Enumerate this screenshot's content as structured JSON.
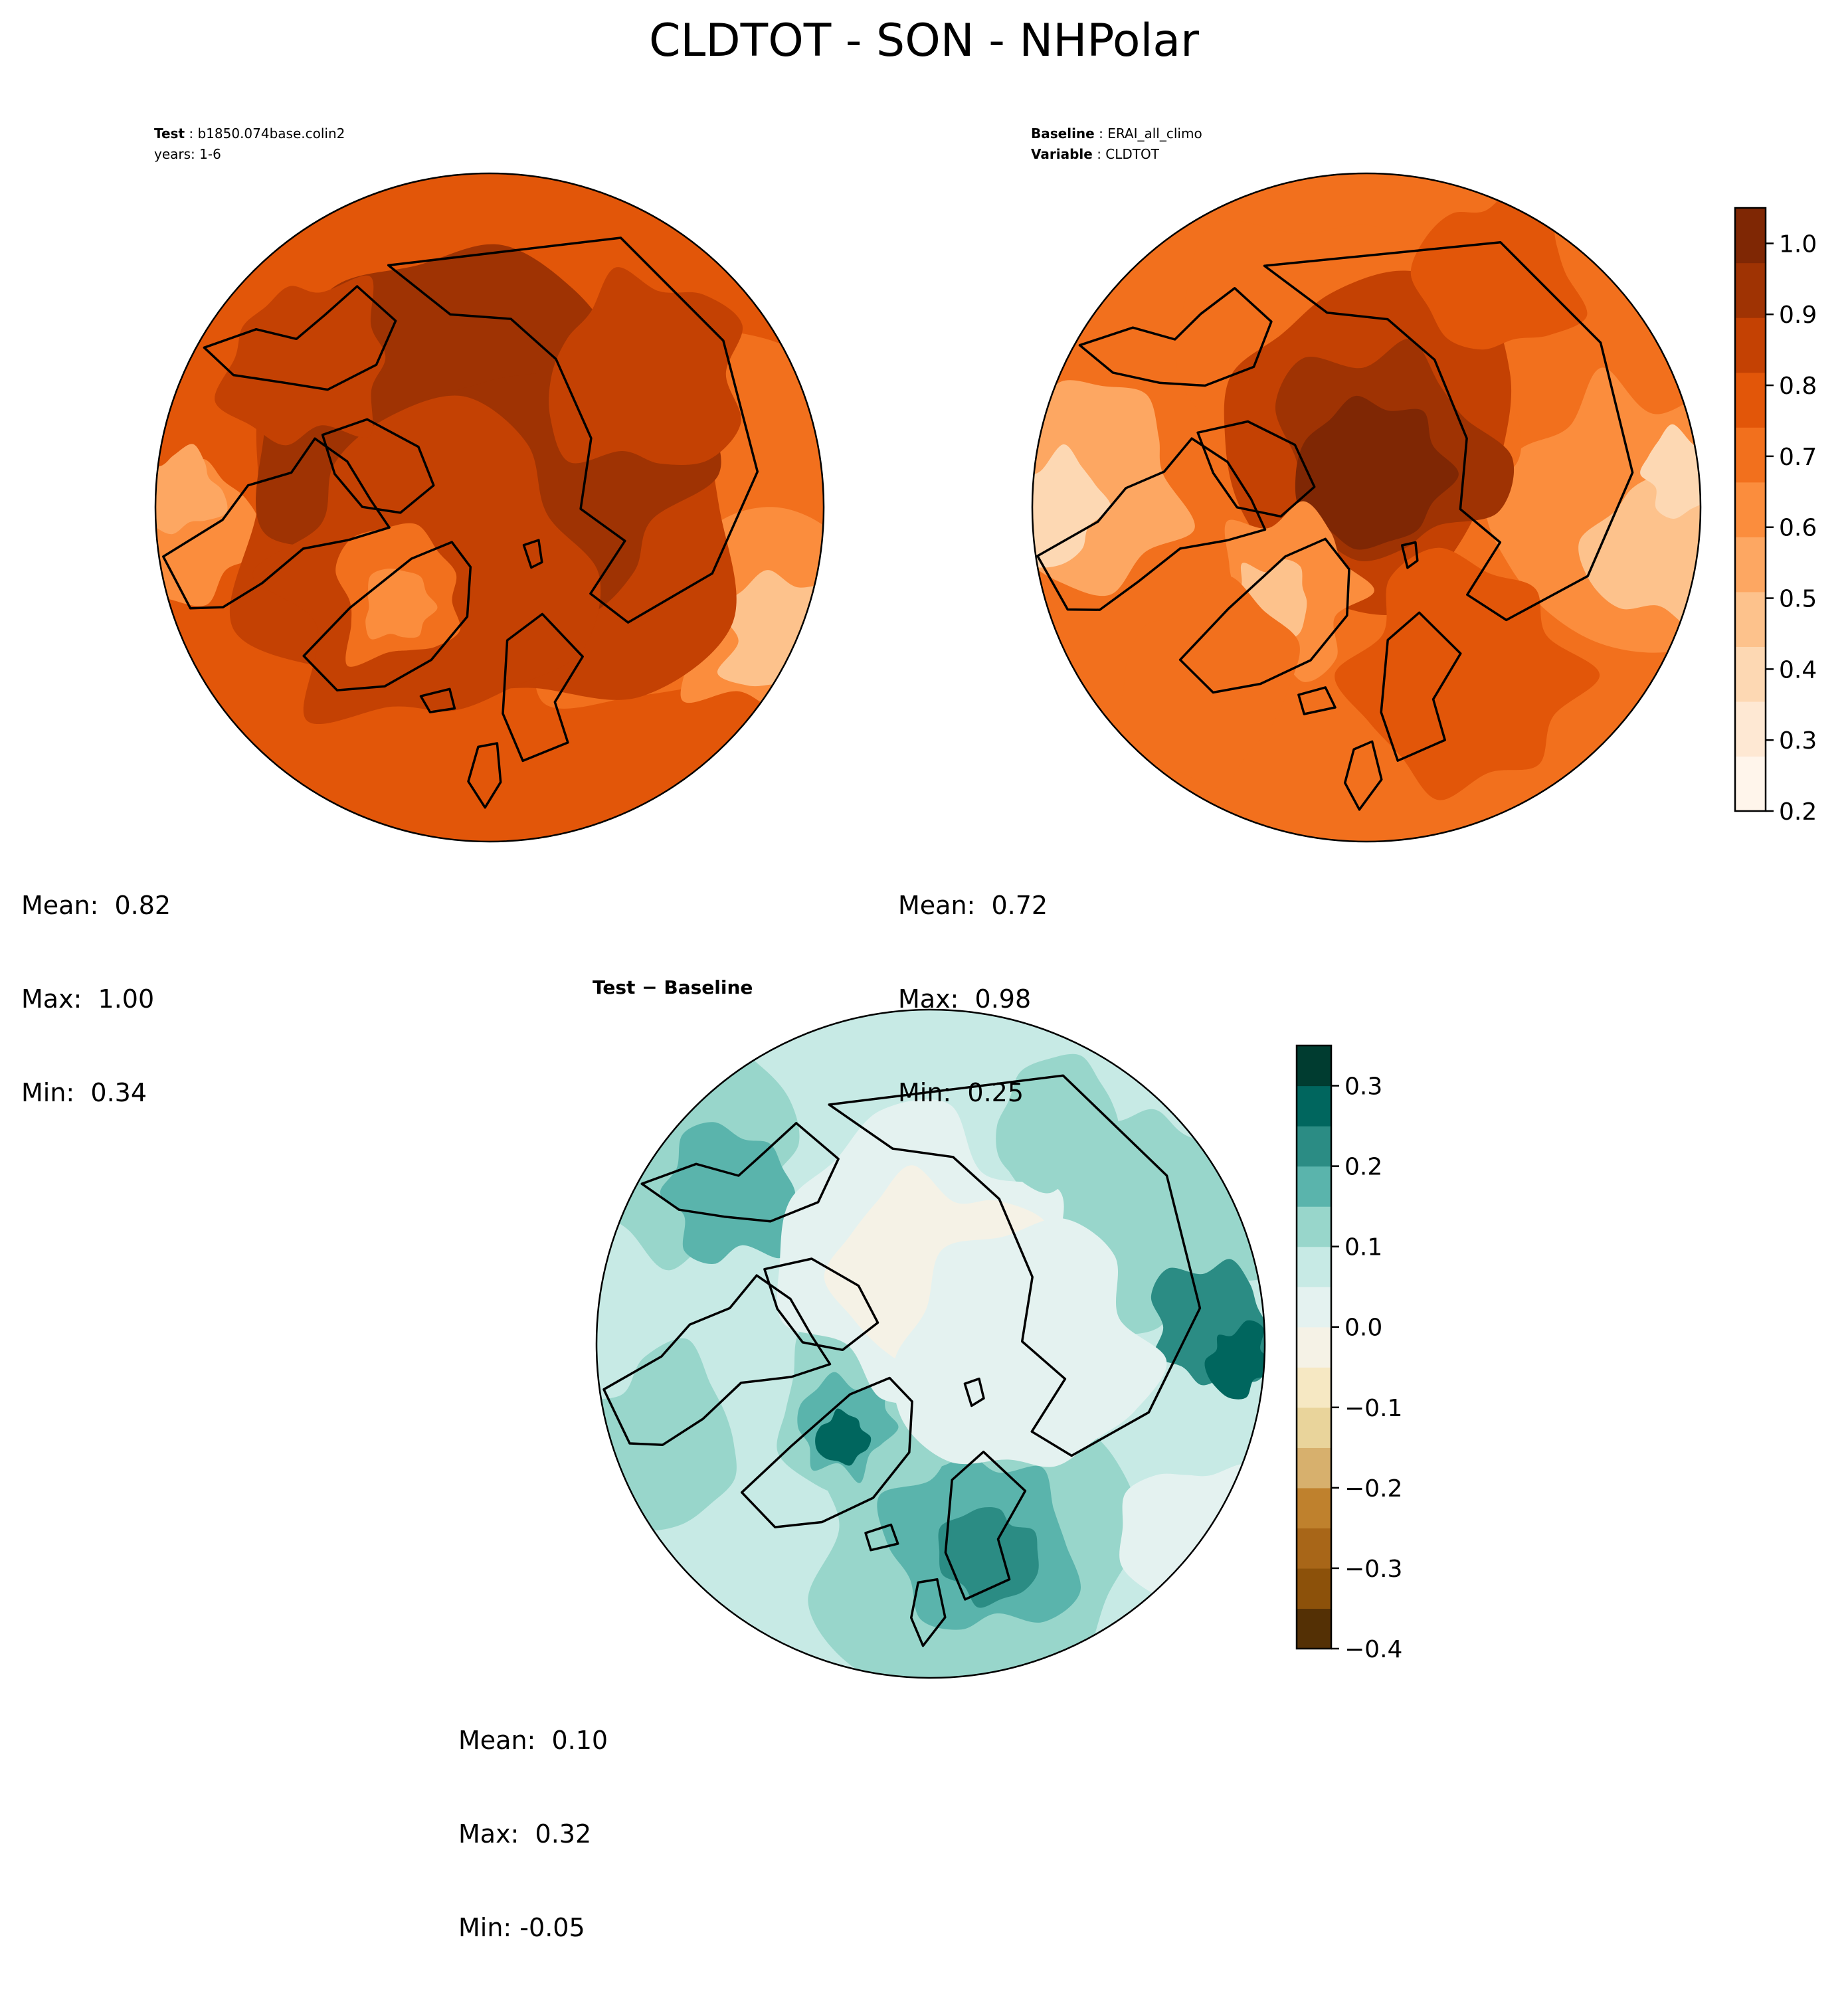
{
  "figure": {
    "title": "CLDTOT - SON - NHPolar"
  },
  "panels": {
    "test": {
      "header": {
        "label": "Test",
        "value": "b1850.074base.colin2",
        "line2": "years: 1-6"
      },
      "stats": {
        "mean": "Mean:  0.82",
        "max": "Max:  1.00",
        "min": "Min:  0.34"
      }
    },
    "baseline": {
      "header": {
        "label": "Baseline",
        "value": "ERAI_all_climo",
        "label2": "Variable",
        "value2": "CLDTOT"
      },
      "stats": {
        "mean": "Mean:  0.72",
        "max": "Max:  0.98",
        "min": "Min:  0.25"
      }
    },
    "diff": {
      "header": {
        "title": "Test − Baseline"
      },
      "stats": {
        "mean": "Mean:  0.10",
        "max": "Max:  0.32",
        "min": "Min: -0.05"
      }
    }
  },
  "chart_data": [
    {
      "type": "heatmap",
      "name_printed": "Test",
      "projection": "north-polar-stereographic",
      "colormap": "Oranges",
      "levels_range": [
        0.2,
        1.05
      ],
      "colorbar_ticks": [
        "0.2",
        "0.3",
        "0.4",
        "0.5",
        "0.6",
        "0.7",
        "0.8",
        "0.9",
        "1.0"
      ],
      "colorbar_tick_values": [
        0.2,
        0.3,
        0.4,
        0.5,
        0.6,
        0.7,
        0.8,
        0.9,
        1.0
      ],
      "mean": 0.82,
      "max": 1.0,
      "min": 0.34
    },
    {
      "type": "heatmap",
      "name_printed": "Baseline",
      "projection": "north-polar-stereographic",
      "colormap": "Oranges",
      "levels_range": [
        0.2,
        1.05
      ],
      "colorbar_ticks": [
        "0.2",
        "0.3",
        "0.4",
        "0.5",
        "0.6",
        "0.7",
        "0.8",
        "0.9",
        "1.0"
      ],
      "colorbar_tick_values": [
        0.2,
        0.3,
        0.4,
        0.5,
        0.6,
        0.7,
        0.8,
        0.9,
        1.0
      ],
      "mean": 0.72,
      "max": 0.98,
      "min": 0.25
    },
    {
      "type": "heatmap",
      "name_printed": "Test − Baseline",
      "projection": "north-polar-stereographic",
      "colormap": "BrBG",
      "levels_range": [
        -0.4,
        0.35
      ],
      "colorbar_ticks": [
        "−0.4",
        "−0.3",
        "−0.2",
        "−0.1",
        "0.0",
        "0.1",
        "0.2",
        "0.3"
      ],
      "colorbar_tick_values": [
        -0.4,
        -0.3,
        -0.2,
        -0.1,
        0.0,
        0.1,
        0.2,
        0.3
      ],
      "mean": 0.1,
      "max": 0.32,
      "min": -0.05
    }
  ],
  "colors": {
    "oranges": [
      "#fff5eb",
      "#fee8d3",
      "#fdd8b3",
      "#fdc28c",
      "#fda762",
      "#fb8d3d",
      "#f2701d",
      "#e25609",
      "#c44103",
      "#9f3303",
      "#7f2704"
    ],
    "brbg": [
      "#543005",
      "#8c510a",
      "#a86618",
      "#bf812d",
      "#d7b06d",
      "#e9d49b",
      "#f6e8c3",
      "#f5f2e6",
      "#e4f2f0",
      "#c7eae5",
      "#98d6cb",
      "#5ab4ac",
      "#2b8c84",
      "#00665e",
      "#003c30"
    ],
    "coastline": "#000000"
  }
}
